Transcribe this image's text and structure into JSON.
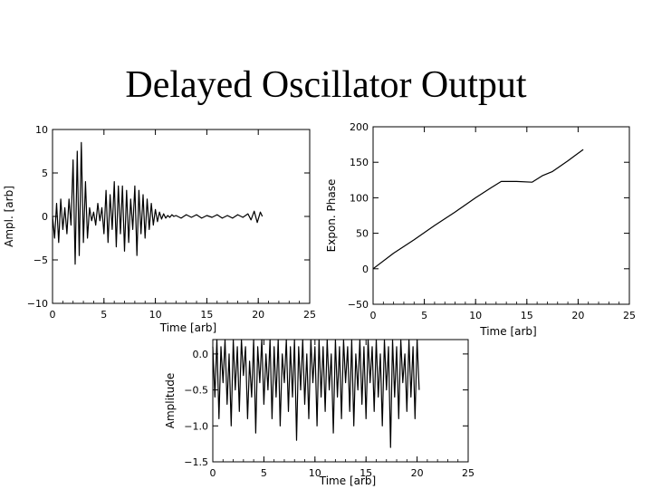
{
  "slide": {
    "title": "Delayed Oscillator Output"
  },
  "colors": {
    "background": "#ffffff",
    "ink": "#000000"
  },
  "chart_data": [
    {
      "id": "amplitude",
      "type": "line",
      "title": "",
      "xlabel": "Time [arb]",
      "ylabel": "Ampl. [arb]",
      "xlim": [
        0,
        25
      ],
      "ylim": [
        -10,
        10
      ],
      "xticks": [
        0,
        5,
        10,
        15,
        20,
        25
      ],
      "yticks": [
        -10,
        -5,
        0,
        5,
        10
      ],
      "ytick_labels": [
        "−10",
        "−5",
        "0",
        "5",
        "10"
      ],
      "grid": false,
      "series": [
        {
          "name": "amplitude",
          "x": [
            0.0,
            0.2,
            0.4,
            0.6,
            0.8,
            1.0,
            1.2,
            1.4,
            1.6,
            1.8,
            2.0,
            2.2,
            2.4,
            2.6,
            2.8,
            3.0,
            3.2,
            3.4,
            3.6,
            3.8,
            4.0,
            4.2,
            4.4,
            4.6,
            4.8,
            5.0,
            5.2,
            5.4,
            5.6,
            5.8,
            6.0,
            6.2,
            6.4,
            6.6,
            6.8,
            7.0,
            7.2,
            7.4,
            7.6,
            7.8,
            8.0,
            8.2,
            8.4,
            8.6,
            8.8,
            9.0,
            9.2,
            9.4,
            9.6,
            9.8,
            10.0,
            10.2,
            10.4,
            10.6,
            10.8,
            11.0,
            11.2,
            11.4,
            11.6,
            11.8,
            12.0,
            12.5,
            13.0,
            13.5,
            14.0,
            14.5,
            15.0,
            15.5,
            16.0,
            16.5,
            17.0,
            17.5,
            18.0,
            18.5,
            19.0,
            19.3,
            19.6,
            19.9,
            20.2,
            20.4
          ],
          "y": [
            0.0,
            -2.5,
            1.5,
            -3.0,
            2.0,
            -1.5,
            1.0,
            -2.0,
            2.0,
            -1.0,
            6.5,
            -5.5,
            7.5,
            -4.5,
            8.5,
            -3.0,
            4.0,
            -2.5,
            1.0,
            -0.5,
            0.5,
            -1.0,
            1.5,
            -0.5,
            1.0,
            -2.0,
            3.0,
            -3.0,
            2.5,
            -1.5,
            4.0,
            -3.5,
            3.5,
            -2.0,
            3.5,
            -4.0,
            3.0,
            -3.0,
            2.0,
            -1.5,
            3.5,
            -4.5,
            3.0,
            -2.0,
            2.5,
            -2.5,
            2.0,
            -1.5,
            1.5,
            -1.0,
            0.8,
            -0.6,
            0.5,
            -0.3,
            0.3,
            -0.2,
            0.1,
            -0.1,
            0.2,
            0.0,
            0.1,
            -0.2,
            0.2,
            -0.1,
            0.2,
            -0.2,
            0.1,
            -0.1,
            0.2,
            -0.2,
            0.1,
            -0.2,
            0.2,
            -0.1,
            0.3,
            -0.4,
            0.6,
            -0.7,
            0.5,
            0.0
          ]
        }
      ]
    },
    {
      "id": "phase",
      "type": "line",
      "title": "",
      "xlabel": "Time [arb]",
      "ylabel": "Expon. Phase",
      "xlim": [
        0,
        25
      ],
      "ylim": [
        -50,
        200
      ],
      "xticks": [
        0,
        5,
        10,
        15,
        20,
        25
      ],
      "yticks": [
        -50,
        0,
        50,
        100,
        150,
        200
      ],
      "ytick_labels": [
        "−50",
        "0",
        "50",
        "100",
        "150",
        "200"
      ],
      "grid": false,
      "series": [
        {
          "name": "phase",
          "x": [
            0.0,
            2.0,
            4.0,
            6.0,
            8.0,
            10.0,
            11.5,
            12.5,
            14.0,
            15.5,
            16.5,
            17.5,
            19.0,
            20.5
          ],
          "y": [
            0,
            22,
            41,
            61,
            80,
            100,
            114,
            123,
            123,
            122,
            131,
            137,
            152,
            168
          ]
        }
      ]
    },
    {
      "id": "amplitude-error",
      "type": "line",
      "title": "",
      "xlabel": "Time [arb]",
      "ylabel": "Amplitude",
      "xlim": [
        0,
        25
      ],
      "ylim": [
        -1.5,
        0.2
      ],
      "xticks": [
        0,
        5,
        10,
        15,
        20,
        25
      ],
      "yticks": [
        -1.5,
        -1.0,
        -0.5,
        0.0
      ],
      "ytick_labels": [
        "−1.5",
        "−1.0",
        "−0.5",
        "0.0"
      ],
      "grid": false,
      "series": [
        {
          "name": "amplitude",
          "x": [
            0.0,
            0.2,
            0.4,
            0.6,
            0.8,
            1.0,
            1.2,
            1.4,
            1.6,
            1.8,
            2.0,
            2.2,
            2.4,
            2.6,
            2.8,
            3.0,
            3.2,
            3.4,
            3.6,
            3.8,
            4.0,
            4.2,
            4.4,
            4.6,
            4.8,
            5.0,
            5.2,
            5.4,
            5.6,
            5.8,
            6.0,
            6.2,
            6.4,
            6.6,
            6.8,
            7.0,
            7.2,
            7.4,
            7.6,
            7.8,
            8.0,
            8.2,
            8.4,
            8.6,
            8.8,
            9.0,
            9.2,
            9.4,
            9.6,
            9.8,
            10.0,
            10.2,
            10.4,
            10.6,
            10.8,
            11.0,
            11.2,
            11.4,
            11.6,
            11.8,
            12.0,
            12.2,
            12.4,
            12.6,
            12.8,
            13.0,
            13.2,
            13.4,
            13.6,
            13.8,
            14.0,
            14.2,
            14.4,
            14.6,
            14.8,
            15.0,
            15.2,
            15.4,
            15.6,
            15.8,
            16.0,
            16.2,
            16.4,
            16.6,
            16.8,
            17.0,
            17.2,
            17.4,
            17.6,
            17.8,
            18.0,
            18.2,
            18.4,
            18.6,
            18.8,
            19.0,
            19.2,
            19.4,
            19.6,
            19.8,
            20.0,
            20.2
          ],
          "y": [
            0.1,
            -0.6,
            0.2,
            -0.9,
            0.1,
            -0.4,
            0.2,
            -0.7,
            0.0,
            -1.0,
            0.2,
            -0.5,
            0.1,
            -0.8,
            0.2,
            -0.3,
            0.1,
            -0.9,
            -0.1,
            -0.6,
            0.2,
            -1.1,
            0.1,
            -0.4,
            0.2,
            -0.7,
            0.0,
            -0.5,
            0.2,
            -0.9,
            0.1,
            -0.6,
            0.2,
            -1.0,
            0.0,
            -0.4,
            0.2,
            -0.8,
            0.1,
            -0.6,
            0.2,
            -1.2,
            0.1,
            -0.5,
            0.2,
            -0.7,
            0.0,
            -0.9,
            0.2,
            -0.4,
            0.1,
            -1.0,
            0.2,
            -0.6,
            0.1,
            -0.8,
            0.2,
            -0.5,
            0.0,
            -1.1,
            0.2,
            -0.6,
            0.1,
            -0.9,
            0.2,
            -0.4,
            0.1,
            -0.8,
            0.2,
            -1.0,
            0.0,
            -0.5,
            0.2,
            -0.7,
            0.1,
            -0.9,
            0.2,
            -0.4,
            0.1,
            -0.8,
            0.2,
            -0.6,
            0.0,
            -1.0,
            0.2,
            -0.5,
            0.1,
            -1.3,
            0.2,
            -0.6,
            0.1,
            -0.9,
            0.2,
            -0.4,
            0.0,
            -0.8,
            0.2,
            -0.6,
            0.1,
            -0.9,
            0.2,
            -0.5
          ]
        }
      ]
    }
  ]
}
